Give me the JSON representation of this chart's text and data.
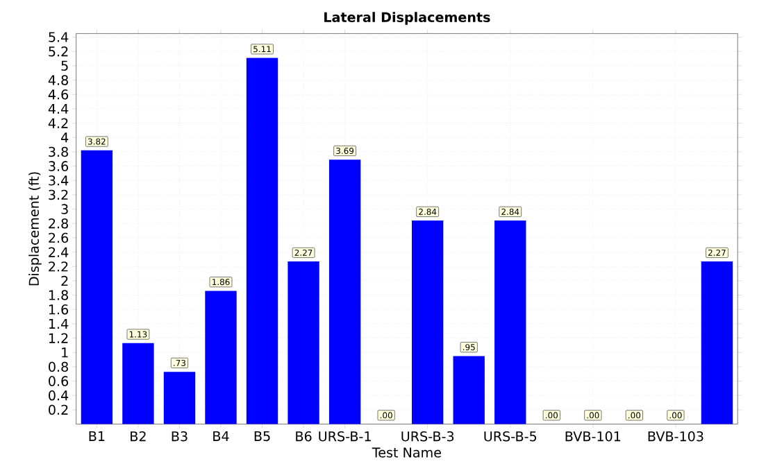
{
  "chart_data": {
    "type": "bar",
    "title": "Lateral Displacements",
    "xlabel": "Test Name",
    "ylabel": "Displacement (ft)",
    "categories": [
      "B1",
      "B2",
      "B3",
      "B4",
      "B5",
      "B6",
      "URS-B-1",
      null,
      "URS-B-3",
      null,
      "URS-B-5",
      null,
      "BVB-101",
      null,
      "BVB-103",
      null
    ],
    "values": [
      3.82,
      1.13,
      0.73,
      1.86,
      5.11,
      2.27,
      3.69,
      0,
      2.84,
      0.95,
      2.84,
      0,
      0,
      0,
      0,
      2.27
    ],
    "value_labels": [
      "3.82",
      "1.13",
      ".73",
      "1.86",
      "5.11",
      "2.27",
      "3.69",
      ".00",
      "2.84",
      ".95",
      "2.84",
      ".00",
      ".00",
      ".00",
      ".00",
      "2.27"
    ],
    "color": "#0000ff",
    "ylim": [
      0,
      5.45
    ],
    "yticks": [
      0.2,
      0.4,
      0.6,
      0.8,
      1,
      1.2,
      1.4,
      1.6,
      1.8,
      2,
      2.2,
      2.4,
      2.6,
      2.8,
      3,
      3.2,
      3.4,
      3.6,
      3.8,
      4,
      4.2,
      4.4,
      4.6,
      4.8,
      5,
      5.2,
      5.4
    ],
    "grid": true
  }
}
